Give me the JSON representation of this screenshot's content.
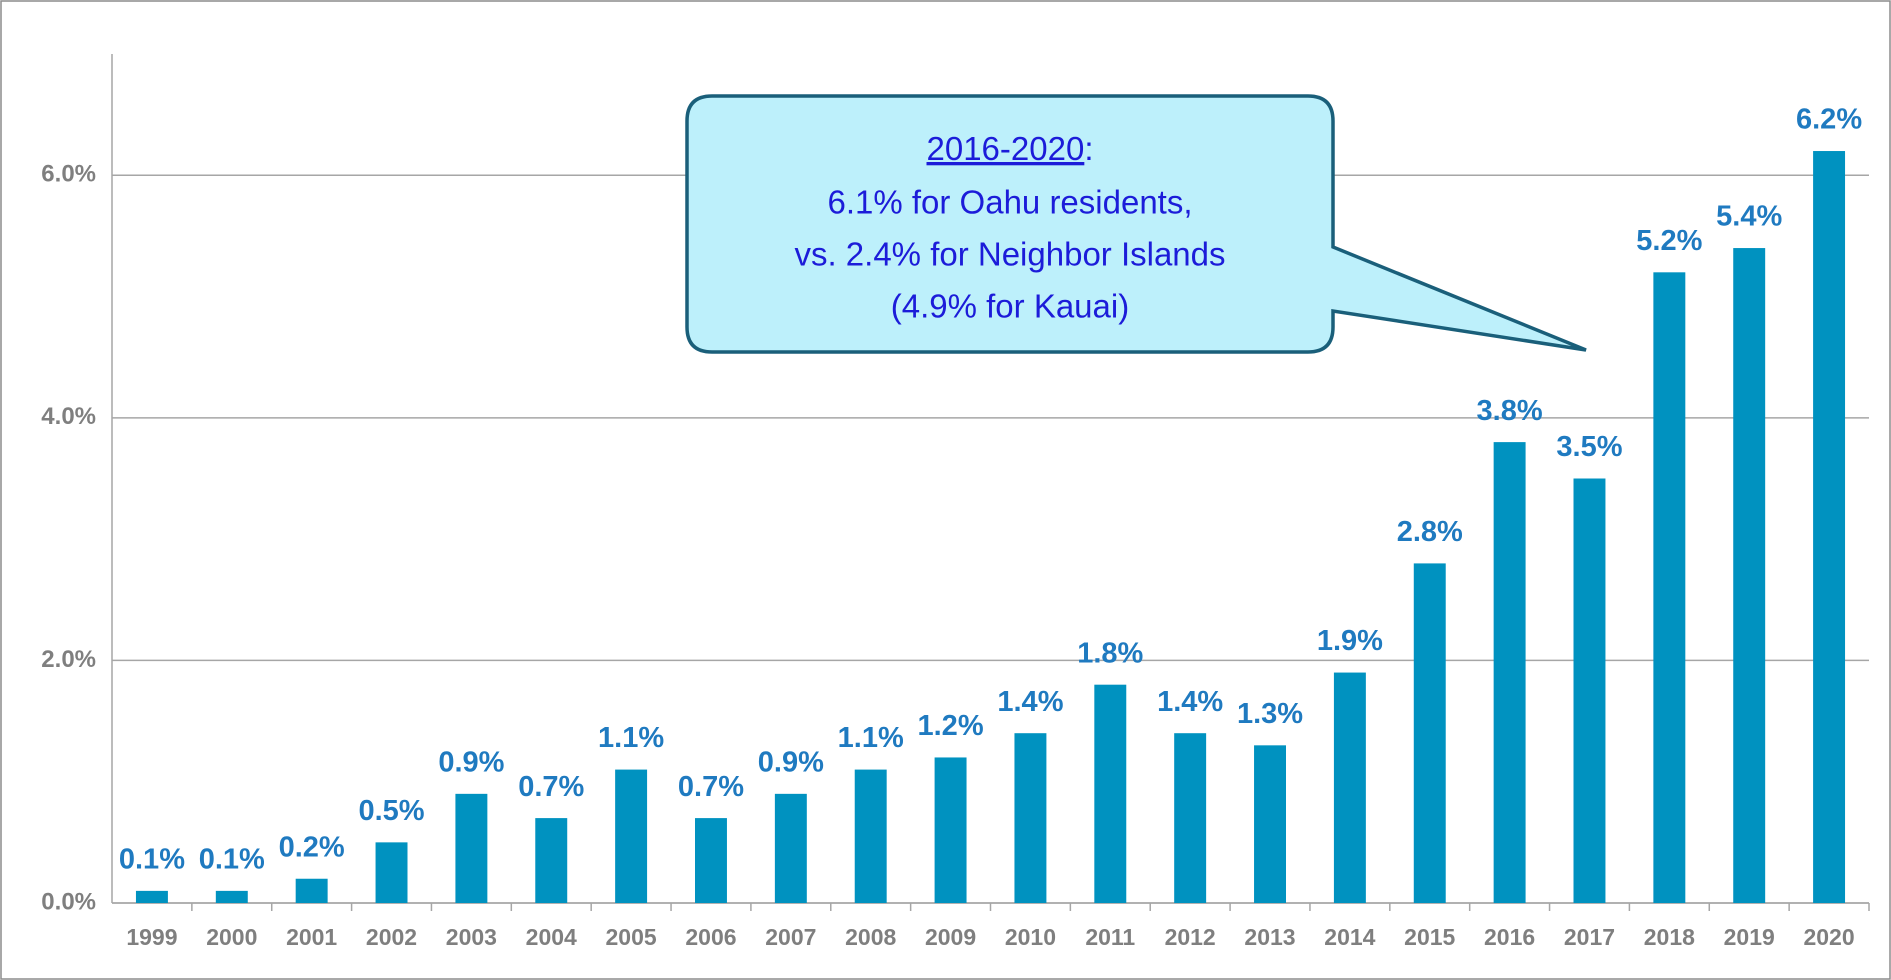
{
  "chart_data": {
    "type": "bar",
    "categories": [
      "1999",
      "2000",
      "2001",
      "2002",
      "2003",
      "2004",
      "2005",
      "2006",
      "2007",
      "2008",
      "2009",
      "2010",
      "2011",
      "2012",
      "2013",
      "2014",
      "2015",
      "2016",
      "2017",
      "2018",
      "2019",
      "2020"
    ],
    "values": [
      0.1,
      0.1,
      0.2,
      0.5,
      0.9,
      0.7,
      1.1,
      0.7,
      0.9,
      1.1,
      1.2,
      1.4,
      1.8,
      1.4,
      1.3,
      1.9,
      2.8,
      3.8,
      3.5,
      5.2,
      5.4,
      6.2
    ],
    "value_labels": [
      "0.1%",
      "0.1%",
      "0.2%",
      "0.5%",
      "0.9%",
      "0.7%",
      "1.1%",
      "0.7%",
      "0.9%",
      "1.1%",
      "1.2%",
      "1.4%",
      "1.8%",
      "1.4%",
      "1.3%",
      "1.9%",
      "2.8%",
      "3.8%",
      "3.5%",
      "5.2%",
      "5.4%",
      "6.2%"
    ],
    "color": "#0092c0",
    "ylim": [
      0,
      7
    ],
    "yticks": [
      {
        "value": 0,
        "label": "0.0%"
      },
      {
        "value": 2,
        "label": "2.0%"
      },
      {
        "value": 4,
        "label": "4.0%"
      },
      {
        "value": 6,
        "label": "6.0%"
      }
    ],
    "grid": true,
    "annotation": {
      "period": "2016-2020",
      "punct": ":",
      "lines": [
        "6.1% for Oahu residents,",
        "vs. 2.4% for Neighbor Islands",
        "(4.9% for Kauai)"
      ]
    }
  }
}
